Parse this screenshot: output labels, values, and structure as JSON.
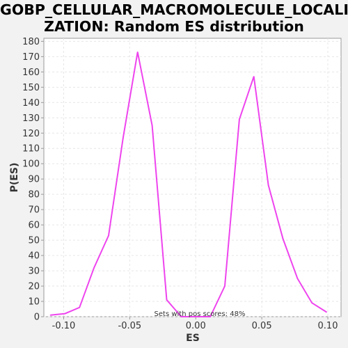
{
  "chart_data": {
    "type": "line",
    "title_line1": "GOBP_CELLULAR_MACROMOLECULE_LOCALI",
    "title_line2": "ZATION: Random ES distribution",
    "xlabel": "ES",
    "ylabel": "P(ES)",
    "annotation": "Sets with pos scores: 48%",
    "xlim": [
      -0.115,
      0.11
    ],
    "ylim": [
      0,
      182
    ],
    "xticks": [
      -0.1,
      -0.05,
      0.0,
      0.05,
      0.1
    ],
    "xtick_labels": [
      "-0.10",
      "-0.05",
      "0.00",
      "0.05",
      "0.10"
    ],
    "yticks": [
      0,
      10,
      20,
      30,
      40,
      50,
      60,
      70,
      80,
      90,
      100,
      110,
      120,
      130,
      140,
      150,
      160,
      170,
      180
    ],
    "grid": true,
    "line_color": "#ee44ee",
    "series": [
      {
        "x": [
          -0.11,
          -0.099,
          -0.088,
          -0.077,
          -0.066,
          -0.055,
          -0.044,
          -0.033,
          -0.022,
          -0.011,
          0.0,
          0.011,
          0.022,
          0.033,
          0.044,
          0.055,
          0.066,
          0.077,
          0.088,
          0.099
        ],
        "y": [
          1,
          2,
          6,
          32,
          53,
          117,
          173,
          125,
          11,
          0,
          0,
          0,
          20,
          129,
          157,
          86,
          51,
          25,
          9,
          3
        ]
      }
    ]
  }
}
